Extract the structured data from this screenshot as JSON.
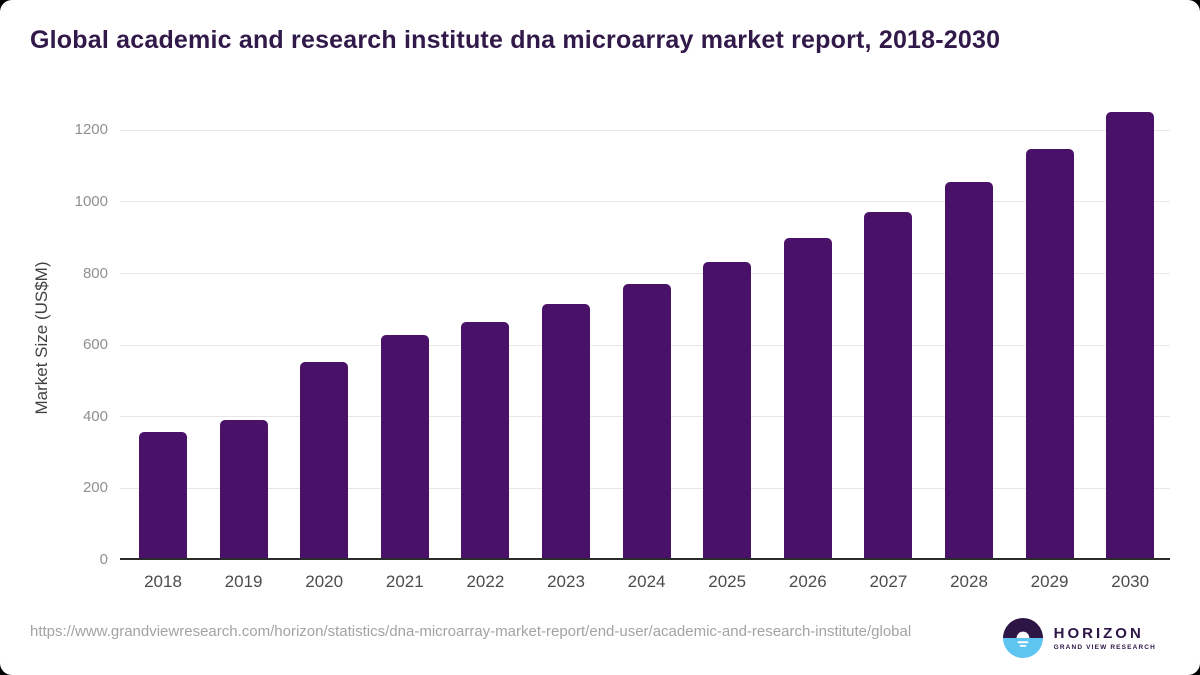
{
  "header": {
    "title": "Global academic and research institute dna microarray market report, 2018-2030"
  },
  "chart_data": {
    "type": "bar",
    "categories": [
      "2018",
      "2019",
      "2020",
      "2021",
      "2022",
      "2023",
      "2024",
      "2025",
      "2026",
      "2027",
      "2028",
      "2029",
      "2030"
    ],
    "values": [
      358,
      390,
      553,
      628,
      666,
      715,
      770,
      832,
      899,
      972,
      1056,
      1148,
      1252
    ],
    "title": "Global academic and research institute dna microarray market report, 2018-2030",
    "xlabel": "",
    "ylabel": "Market Size (US$M)",
    "ylim": [
      0,
      1260
    ],
    "yticks": [
      0,
      200,
      400,
      600,
      800,
      1000,
      1200
    ],
    "grid": true,
    "legend": "none",
    "bar_color": "#4a1168",
    "gridline_color": "#e7e7e7",
    "axis_line_color": "#2b2b2b"
  },
  "colors": {
    "title_text": "#31194a",
    "background": "#ffffff",
    "page_behind": "#000000",
    "tick_text": "#8f8f8f",
    "category_text": "#4c4c4c",
    "footer_text": "#a3a3a3",
    "logo_purple": "#2d1545",
    "logo_blue": "#5ec4f0"
  },
  "footer": {
    "source_url": "https://www.grandviewresearch.com/horizon/statistics/dna-microarray-market-report/end-user/academic-and-research-institute/global"
  },
  "logo": {
    "brand": "HORIZON",
    "subtitle": "GRAND VIEW RESEARCH"
  }
}
